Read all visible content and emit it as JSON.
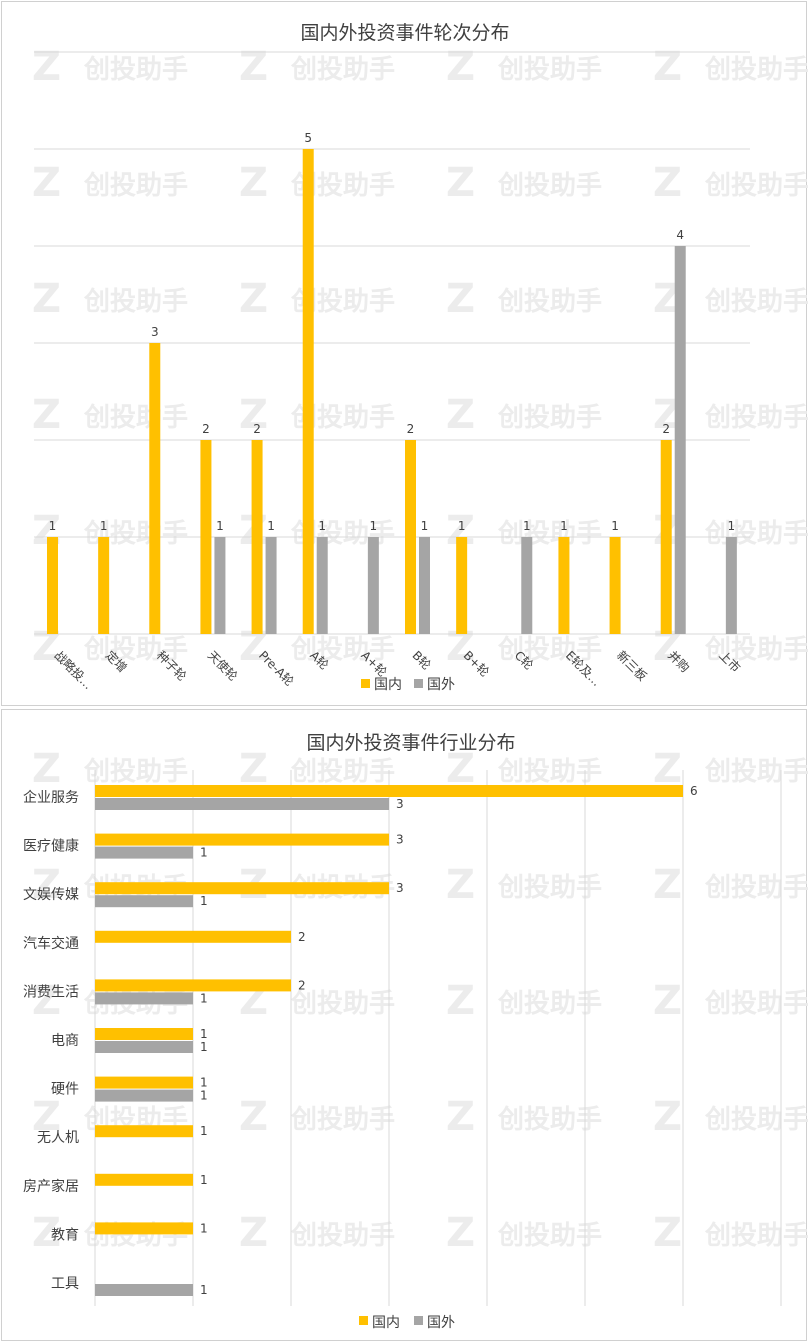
{
  "watermark": "创投助手",
  "colors": {
    "domestic": "#FFC000",
    "foreign": "#A5A5A5",
    "grid": "#D9D9D9",
    "text": "#404040"
  },
  "chart_data": [
    {
      "type": "bar",
      "title": "国内外投资事件轮次分布",
      "categories": [
        "战略投…",
        "定增",
        "种子轮",
        "天使轮",
        "Pre-A轮",
        "A轮",
        "A+轮",
        "B轮",
        "B+轮",
        "C轮",
        "E轮及…",
        "新三板",
        "并购",
        "上市"
      ],
      "series": [
        {
          "name": "国内",
          "values": [
            1,
            1,
            3,
            2,
            2,
            5,
            0,
            2,
            1,
            0,
            1,
            1,
            2,
            0
          ]
        },
        {
          "name": "国外",
          "values": [
            0,
            0,
            0,
            1,
            1,
            1,
            1,
            1,
            0,
            1,
            0,
            0,
            4,
            1
          ]
        }
      ],
      "ylim": [
        0,
        6
      ],
      "grid": true,
      "legend": "bottom"
    },
    {
      "type": "bar",
      "orientation": "horizontal",
      "title": "国内外投资事件行业分布",
      "categories": [
        "企业服务",
        "医疗健康",
        "文娱传媒",
        "汽车交通",
        "消费生活",
        "电商",
        "硬件",
        "无人机",
        "房产家居",
        "教育",
        "工具"
      ],
      "series": [
        {
          "name": "国内",
          "values": [
            6,
            3,
            3,
            2,
            2,
            1,
            1,
            1,
            1,
            1,
            0
          ]
        },
        {
          "name": "国外",
          "values": [
            3,
            1,
            1,
            0,
            1,
            1,
            1,
            0,
            0,
            0,
            1
          ]
        }
      ],
      "xlim": [
        0,
        7
      ],
      "grid": true,
      "legend": "bottom"
    }
  ]
}
